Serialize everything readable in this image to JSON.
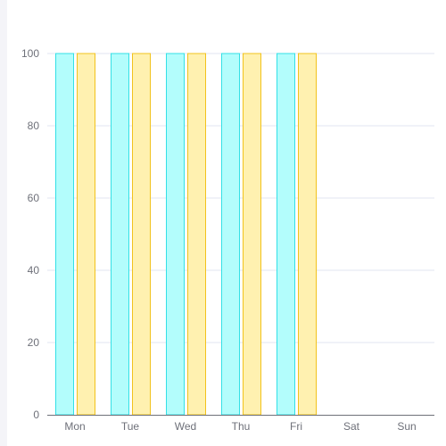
{
  "chart_data": {
    "type": "bar",
    "categories": [
      "Mon",
      "Tue",
      "Wed",
      "Thu",
      "Fri",
      "Sat",
      "Sun"
    ],
    "series": [
      {
        "values": [
          100,
          100,
          100,
          100,
          100,
          null,
          null
        ],
        "fill": "#b3fdfc",
        "stroke": "#33e0e6"
      },
      {
        "values": [
          100,
          100,
          100,
          100,
          100,
          null,
          null
        ],
        "fill": "#fff1b0",
        "stroke": "#f2c21c"
      }
    ],
    "ylim": [
      0,
      100
    ],
    "yticks": [
      0,
      20,
      40,
      60,
      80,
      100
    ],
    "grid": true,
    "legend": "none",
    "colors": {
      "grid": "#e0e6f1",
      "axis": "#6e7079",
      "tick_text": "#6e7079"
    }
  }
}
